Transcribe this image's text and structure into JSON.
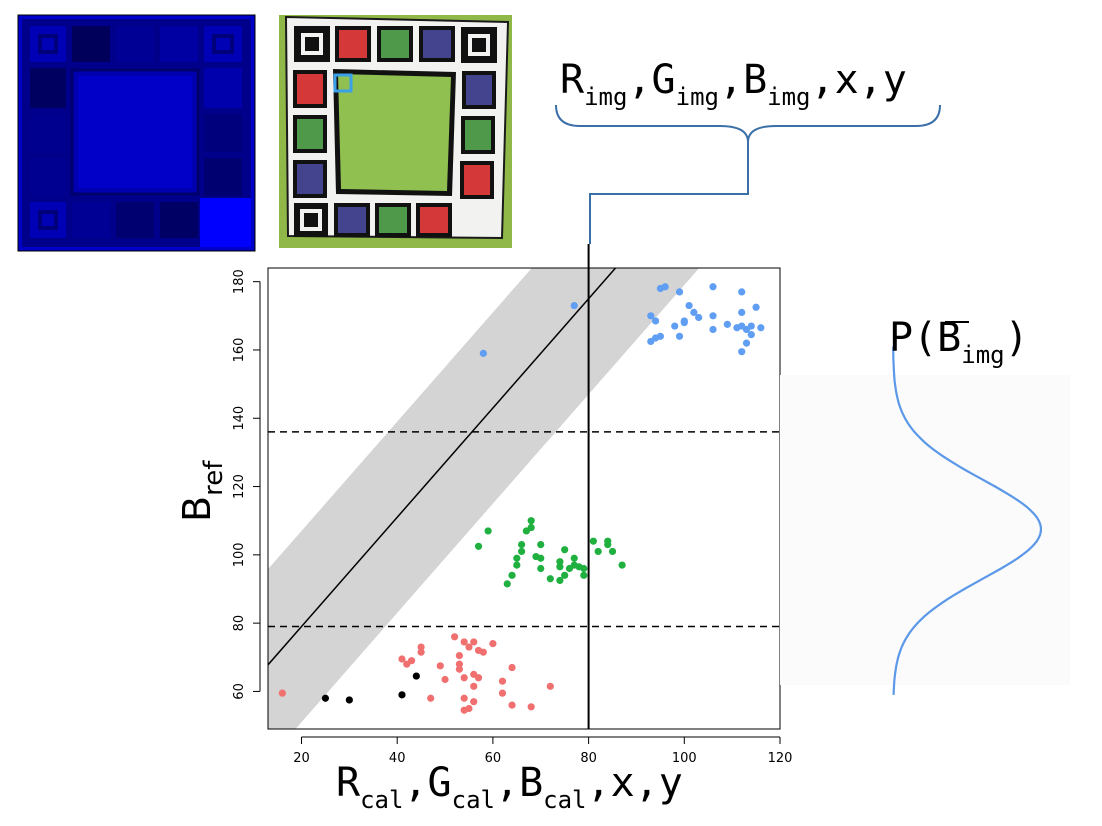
{
  "thumbnails": {
    "blue_tile": {
      "name": "blue channel calibration card"
    },
    "photo_tile": {
      "name": "photographed calibration card",
      "colors": {
        "red": "#d43838",
        "green": "#4f9a4a",
        "blue": "#44448e",
        "background": "#8fb848",
        "highlight": "#3aa0e8"
      }
    }
  },
  "labels": {
    "top_main": [
      "R",
      ",G",
      ",B",
      ",x,y"
    ],
    "top_sub": "img",
    "x_main": [
      "R",
      ",G",
      ",B",
      ",x,y"
    ],
    "x_sub": "cal",
    "y_main": "B",
    "y_sub": "ref",
    "dist_main": "P(",
    "dist_letter": "B",
    "dist_sub": "img",
    "dist_close": ")"
  },
  "chart_data": {
    "type": "scatter",
    "xlim": [
      13,
      120
    ],
    "ylim": [
      49,
      184
    ],
    "xticks": [
      20,
      40,
      60,
      80,
      100,
      120
    ],
    "yticks": [
      60,
      80,
      100,
      120,
      140,
      160,
      180
    ],
    "vertical_line_x": 80,
    "horizontal_dashed_y": [
      136,
      79
    ],
    "fit_line": {
      "slope": 1.6,
      "intercept": 47,
      "band_halfwidth": 28
    },
    "distribution": {
      "mean": 107.5,
      "sd": 14.5
    },
    "colors": {
      "red": "#f07070",
      "green": "#1fb040",
      "blue": "#5f9ef2",
      "black": "#000000",
      "band": "#d4d4d4"
    },
    "series": [
      {
        "color": "black",
        "points": [
          [
            25,
            58
          ],
          [
            30,
            57.5
          ],
          [
            41,
            59
          ],
          [
            44,
            64.5
          ]
        ]
      },
      {
        "color": "red",
        "points": [
          [
            16,
            59.5
          ],
          [
            41,
            69.5
          ],
          [
            42,
            68
          ],
          [
            43,
            69
          ],
          [
            45,
            73
          ],
          [
            45,
            71.5
          ],
          [
            47,
            58
          ],
          [
            49,
            67.5
          ],
          [
            50,
            63.5
          ],
          [
            52,
            76
          ],
          [
            53,
            70.5
          ],
          [
            53,
            68
          ],
          [
            53,
            66.5
          ],
          [
            54,
            74.5
          ],
          [
            54,
            64
          ],
          [
            54,
            58
          ],
          [
            54,
            54.5
          ],
          [
            55,
            73
          ],
          [
            55,
            55
          ],
          [
            56,
            74.5
          ],
          [
            56,
            65
          ],
          [
            56,
            61.5
          ],
          [
            56,
            57
          ],
          [
            57,
            72
          ],
          [
            57,
            64
          ],
          [
            58,
            71.5
          ],
          [
            60,
            74
          ],
          [
            62,
            63
          ],
          [
            62,
            59.5
          ],
          [
            64,
            67
          ],
          [
            64,
            56
          ],
          [
            68,
            55.5
          ],
          [
            72,
            61.5
          ]
        ]
      },
      {
        "color": "green",
        "points": [
          [
            57,
            102.5
          ],
          [
            59,
            107
          ],
          [
            63,
            91.5
          ],
          [
            64,
            94
          ],
          [
            65,
            97
          ],
          [
            65,
            99
          ],
          [
            66,
            101
          ],
          [
            66,
            103
          ],
          [
            67,
            107
          ],
          [
            68,
            110
          ],
          [
            68,
            108
          ],
          [
            69,
            99.5
          ],
          [
            70,
            103
          ],
          [
            70,
            99
          ],
          [
            70,
            96
          ],
          [
            72,
            93
          ],
          [
            74,
            92.5
          ],
          [
            74,
            96.5
          ],
          [
            74,
            98
          ],
          [
            75,
            94
          ],
          [
            75,
            101.5
          ],
          [
            76,
            96
          ],
          [
            77,
            99
          ],
          [
            77,
            97
          ],
          [
            78,
            96.5
          ],
          [
            79,
            94
          ],
          [
            79,
            96
          ],
          [
            81,
            104
          ],
          [
            82,
            101
          ],
          [
            84,
            104
          ],
          [
            84,
            103
          ],
          [
            85,
            101
          ],
          [
            87,
            97
          ]
        ]
      },
      {
        "color": "blue",
        "points": [
          [
            58,
            159
          ],
          [
            77,
            173
          ],
          [
            93,
            170
          ],
          [
            93,
            162.5
          ],
          [
            94,
            168.5
          ],
          [
            94,
            163.5
          ],
          [
            95,
            178
          ],
          [
            95,
            164
          ],
          [
            96,
            178.5
          ],
          [
            98,
            167
          ],
          [
            99,
            177
          ],
          [
            99,
            164
          ],
          [
            100,
            168.5
          ],
          [
            100,
            168
          ],
          [
            101,
            173
          ],
          [
            102,
            171
          ],
          [
            103,
            169.5
          ],
          [
            106,
            178.5
          ],
          [
            106,
            170
          ],
          [
            106,
            166
          ],
          [
            109,
            167.5
          ],
          [
            111,
            166.5
          ],
          [
            112,
            177
          ],
          [
            112,
            171
          ],
          [
            112,
            167
          ],
          [
            112,
            159.5
          ],
          [
            113,
            162
          ],
          [
            113,
            166
          ],
          [
            114,
            167
          ],
          [
            114,
            164.5
          ],
          [
            115,
            172.5
          ],
          [
            116,
            166.5
          ]
        ]
      }
    ]
  }
}
